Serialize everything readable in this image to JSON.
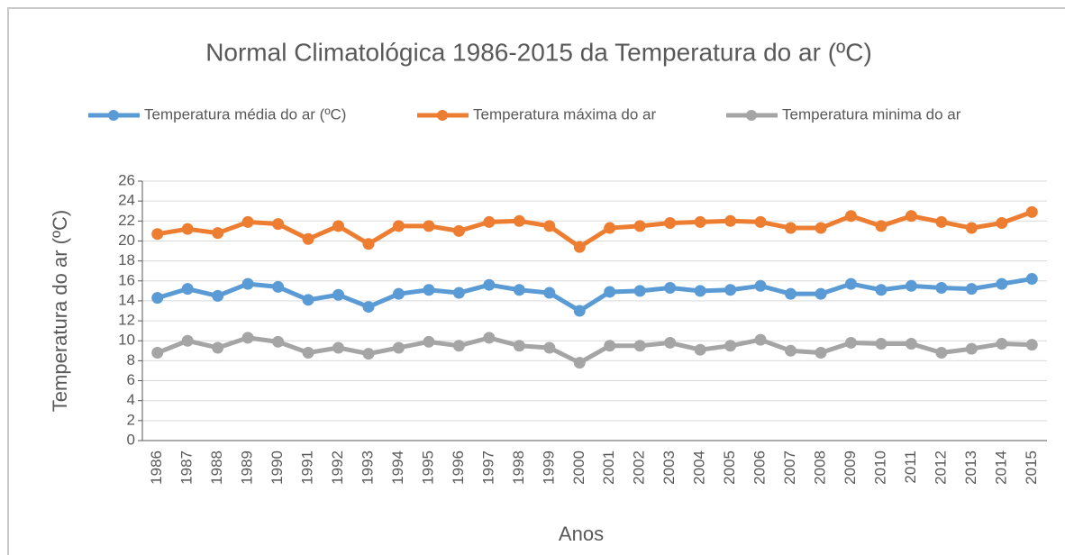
{
  "chart_data": {
    "type": "line",
    "title": "Normal Climatológica 1986-2015 da Temperatura do ar (ºC)",
    "x_label": "Anos",
    "y_label": "Temperatura do ar (ºC)",
    "categories": [
      "1986",
      "1987",
      "1988",
      "1989",
      "1990",
      "1991",
      "1992",
      "1993",
      "1994",
      "1995",
      "1996",
      "1997",
      "1998",
      "1999",
      "2000",
      "2001",
      "2002",
      "2003",
      "2004",
      "2005",
      "2006",
      "2007",
      "2008",
      "2009",
      "2010",
      "2011",
      "2012",
      "2013",
      "2014",
      "2015"
    ],
    "series": [
      {
        "name": "Temperatura média do ar (ºC)",
        "color": "#5b9bd5",
        "values": [
          14.3,
          15.2,
          14.5,
          15.7,
          15.4,
          14.1,
          14.6,
          13.4,
          14.7,
          15.1,
          14.8,
          15.6,
          15.1,
          14.8,
          13.0,
          14.9,
          15.0,
          15.3,
          15.0,
          15.1,
          15.5,
          14.7,
          14.7,
          15.7,
          15.1,
          15.5,
          15.3,
          15.2,
          15.7,
          16.2
        ]
      },
      {
        "name": "Temperatura máxima do ar",
        "color": "#ed7d31",
        "values": [
          20.7,
          21.2,
          20.8,
          21.9,
          21.7,
          20.2,
          21.5,
          19.7,
          21.5,
          21.5,
          21.0,
          21.9,
          22.0,
          21.5,
          19.4,
          21.3,
          21.5,
          21.8,
          21.9,
          22.0,
          21.9,
          21.3,
          21.3,
          22.5,
          21.5,
          22.5,
          21.9,
          21.3,
          21.8,
          22.9
        ]
      },
      {
        "name": "Temperatura minima do ar",
        "color": "#a5a5a5",
        "values": [
          8.8,
          10.0,
          9.3,
          10.3,
          9.9,
          8.8,
          9.3,
          8.7,
          9.3,
          9.9,
          9.5,
          10.3,
          9.5,
          9.3,
          7.8,
          9.5,
          9.5,
          9.8,
          9.1,
          9.5,
          10.1,
          9.0,
          8.8,
          9.8,
          9.7,
          9.7,
          8.8,
          9.2,
          9.7,
          9.6
        ]
      }
    ],
    "ylim": [
      0,
      26
    ],
    "yticks": [
      0,
      2,
      4,
      6,
      8,
      10,
      12,
      14,
      16,
      18,
      20,
      22,
      24,
      26
    ],
    "grid": true,
    "legend": "top"
  }
}
